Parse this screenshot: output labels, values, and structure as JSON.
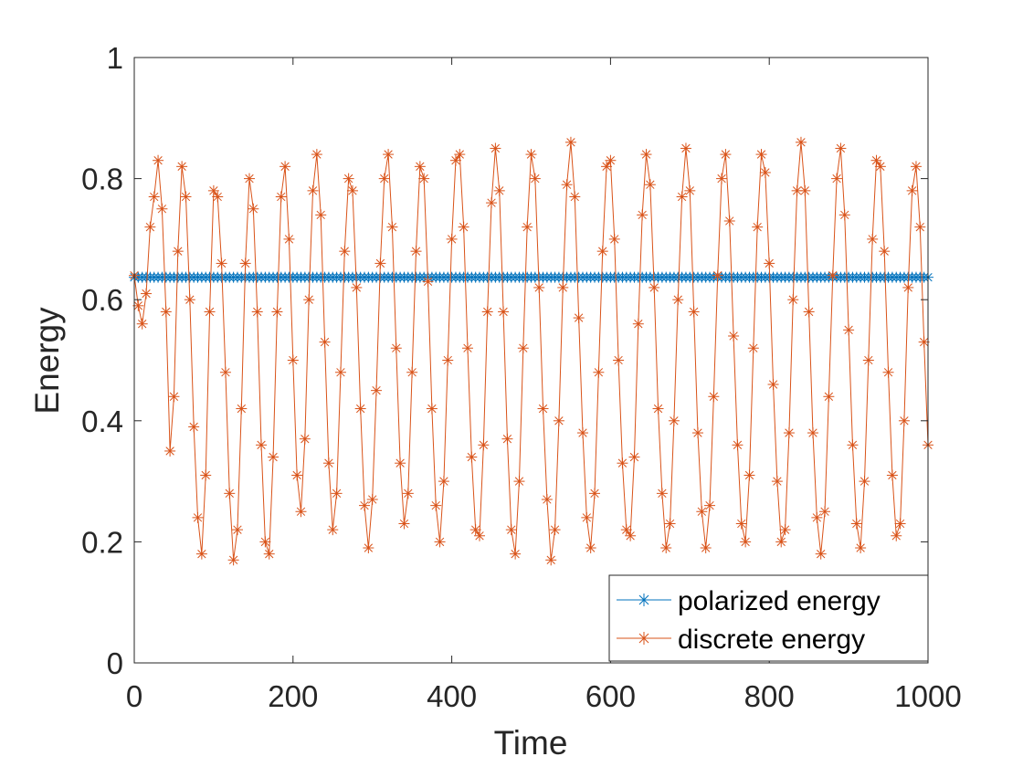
{
  "chart_data": {
    "type": "line",
    "title": "",
    "xlabel": "Time",
    "ylabel": "Energy",
    "xlim": [
      0,
      1000
    ],
    "ylim": [
      0,
      1
    ],
    "xticks": [
      "0",
      "200",
      "400",
      "600",
      "800",
      "1000"
    ],
    "yticks": [
      "0",
      "0.2",
      "0.4",
      "0.6",
      "0.8",
      "1"
    ],
    "legend_position": "bottom-right",
    "series": [
      {
        "name": "polarized energy",
        "color": "#0072BD",
        "marker": "asterisk",
        "x_start": 0,
        "x_end": 1000,
        "x_step": 5,
        "constant_value": 0.637
      },
      {
        "name": "discrete energy",
        "color": "#D95319",
        "marker": "asterisk",
        "x_start": 0,
        "x_end": 1000,
        "x_step": 5,
        "values": [
          0.64,
          0.59,
          0.56,
          0.61,
          0.72,
          0.77,
          0.83,
          0.75,
          0.58,
          0.35,
          0.44,
          0.68,
          0.82,
          0.77,
          0.6,
          0.39,
          0.24,
          0.18,
          0.31,
          0.58,
          0.78,
          0.77,
          0.66,
          0.48,
          0.28,
          0.17,
          0.22,
          0.42,
          0.66,
          0.8,
          0.75,
          0.58,
          0.36,
          0.2,
          0.18,
          0.34,
          0.58,
          0.77,
          0.82,
          0.7,
          0.5,
          0.31,
          0.25,
          0.37,
          0.6,
          0.78,
          0.84,
          0.74,
          0.53,
          0.33,
          0.22,
          0.28,
          0.48,
          0.68,
          0.8,
          0.78,
          0.62,
          0.42,
          0.26,
          0.19,
          0.27,
          0.45,
          0.66,
          0.8,
          0.84,
          0.72,
          0.52,
          0.33,
          0.23,
          0.28,
          0.48,
          0.68,
          0.82,
          0.8,
          0.63,
          0.42,
          0.26,
          0.2,
          0.3,
          0.5,
          0.7,
          0.83,
          0.84,
          0.72,
          0.52,
          0.34,
          0.22,
          0.21,
          0.36,
          0.58,
          0.76,
          0.85,
          0.78,
          0.58,
          0.37,
          0.22,
          0.18,
          0.3,
          0.52,
          0.72,
          0.84,
          0.8,
          0.62,
          0.42,
          0.27,
          0.17,
          0.22,
          0.4,
          0.62,
          0.79,
          0.86,
          0.77,
          0.57,
          0.38,
          0.24,
          0.19,
          0.28,
          0.48,
          0.68,
          0.82,
          0.83,
          0.7,
          0.5,
          0.33,
          0.22,
          0.21,
          0.34,
          0.56,
          0.74,
          0.84,
          0.79,
          0.62,
          0.42,
          0.28,
          0.19,
          0.23,
          0.4,
          0.6,
          0.77,
          0.85,
          0.78,
          0.58,
          0.38,
          0.25,
          0.19,
          0.26,
          0.44,
          0.64,
          0.8,
          0.84,
          0.73,
          0.54,
          0.36,
          0.23,
          0.2,
          0.31,
          0.52,
          0.72,
          0.84,
          0.81,
          0.66,
          0.46,
          0.3,
          0.2,
          0.22,
          0.38,
          0.6,
          0.78,
          0.86,
          0.78,
          0.58,
          0.38,
          0.24,
          0.18,
          0.25,
          0.44,
          0.64,
          0.8,
          0.85,
          0.74,
          0.55,
          0.36,
          0.23,
          0.19,
          0.3,
          0.5,
          0.7,
          0.83,
          0.82,
          0.68,
          0.48,
          0.31,
          0.21,
          0.23,
          0.4,
          0.62,
          0.78,
          0.82,
          0.72,
          0.53,
          0.36
        ]
      }
    ]
  },
  "legend": {
    "entries": [
      "polarized energy",
      "discrete energy"
    ]
  }
}
